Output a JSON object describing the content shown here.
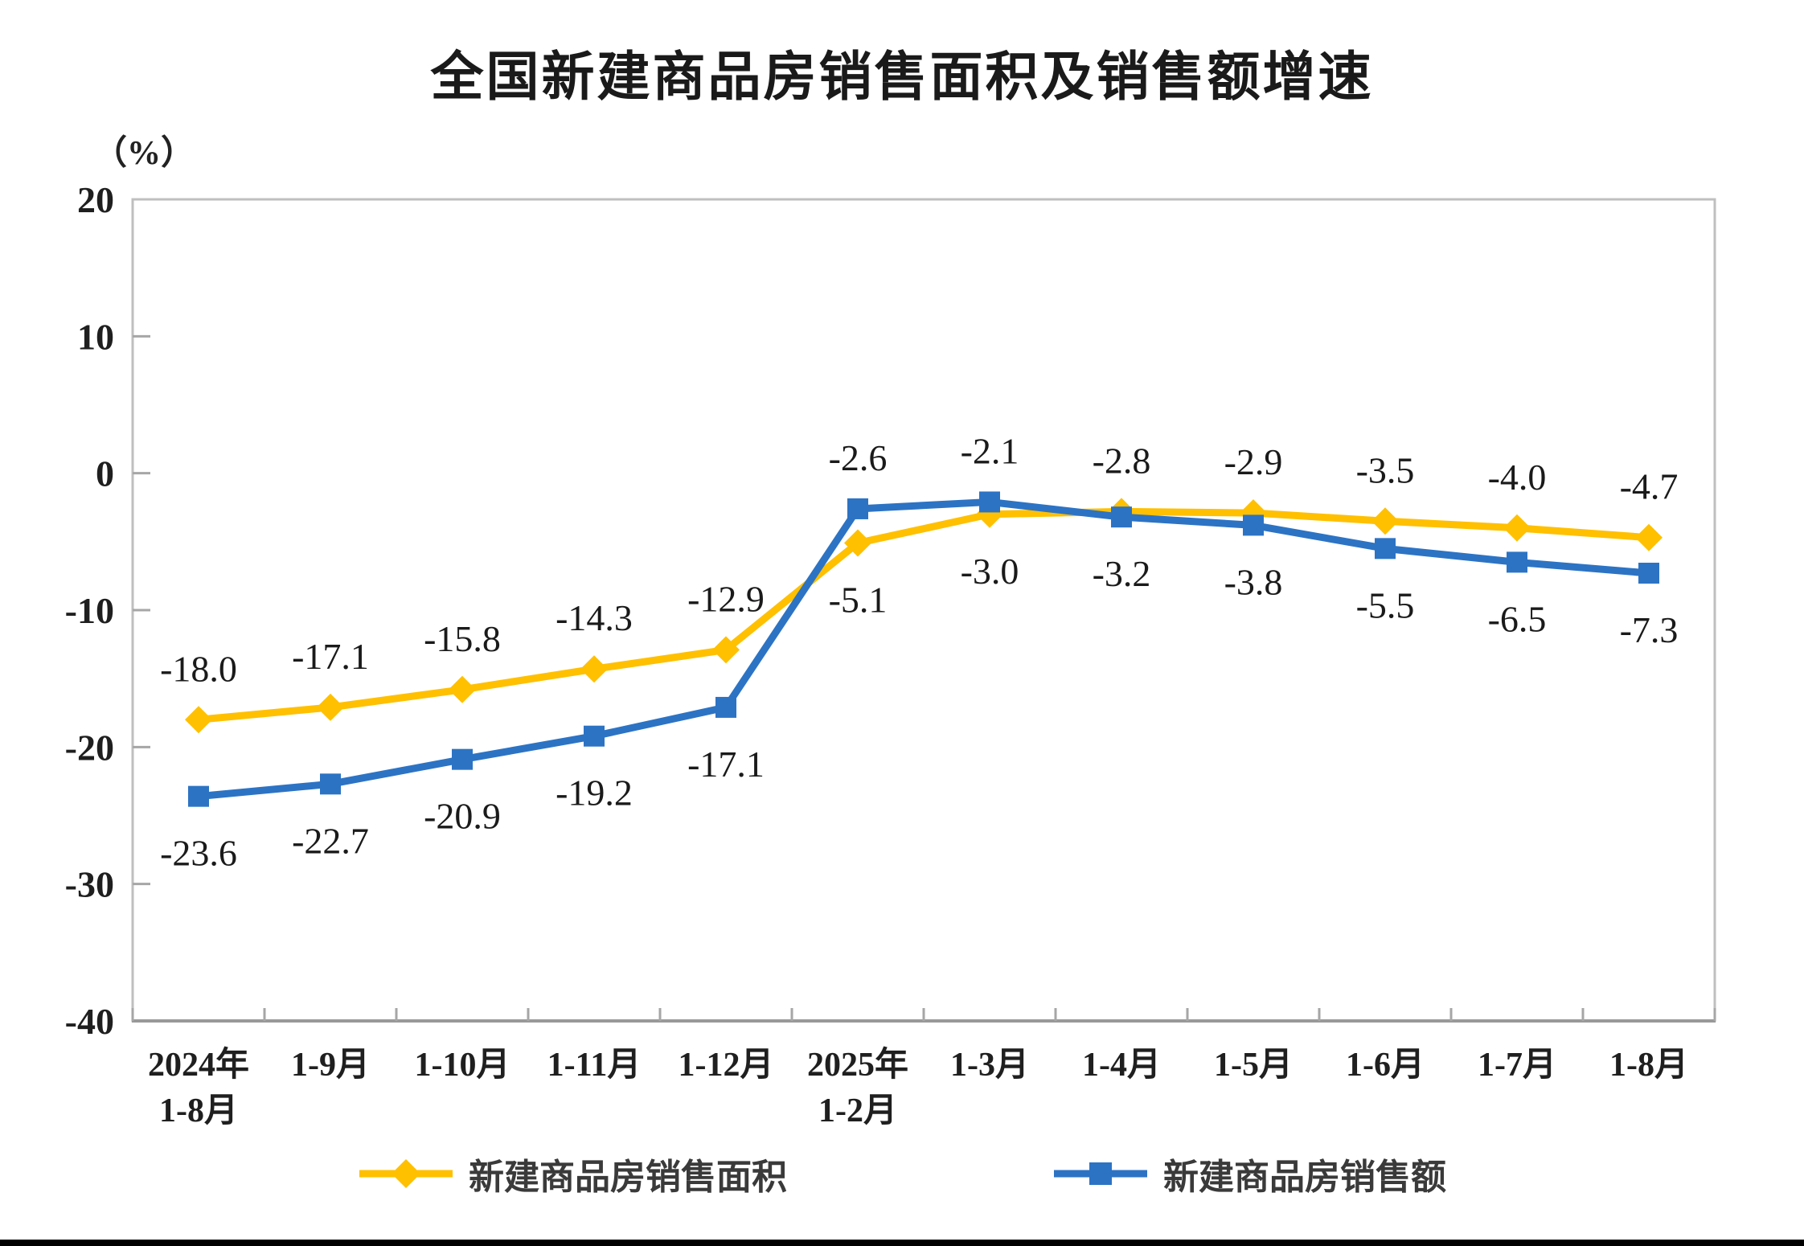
{
  "page": {
    "background": "#ffffff",
    "bottom_bar_color": "#000000"
  },
  "chart_data": {
    "type": "line",
    "title": "全国新建商品房销售面积及销售额增速",
    "unit_label": "（%）",
    "ylim": [
      -40,
      20
    ],
    "y_ticks": [
      20,
      10,
      0,
      -10,
      -20,
      -30,
      -40
    ],
    "grid": false,
    "legend_position": "bottom",
    "axis_color": "#a6a6a6",
    "border_color": "#bfbfbf",
    "label_color": "#1a1a1a",
    "categories": [
      [
        "2024年",
        "1-8月"
      ],
      [
        "1-9月"
      ],
      [
        "1-10月"
      ],
      [
        "1-11月"
      ],
      [
        "1-12月"
      ],
      [
        "2025年",
        "1-2月"
      ],
      [
        "1-3月"
      ],
      [
        "1-4月"
      ],
      [
        "1-5月"
      ],
      [
        "1-6月"
      ],
      [
        "1-7月"
      ],
      [
        "1-8月"
      ]
    ],
    "series": [
      {
        "name": "新建商品房销售面积",
        "color": "#FFC000",
        "marker": "diamond",
        "values": [
          -18.0,
          -17.1,
          -15.8,
          -14.3,
          -12.9,
          -5.1,
          -3.0,
          -2.8,
          -2.9,
          -3.5,
          -4.0,
          -4.7
        ],
        "label_sides": [
          "above",
          "above",
          "above",
          "above",
          "above",
          "below",
          "below",
          "above",
          "above",
          "above",
          "above",
          "above"
        ]
      },
      {
        "name": "新建商品房销售额",
        "color": "#2C73C4",
        "marker": "square",
        "values": [
          -23.6,
          -22.7,
          -20.9,
          -19.2,
          -17.1,
          -2.6,
          -2.1,
          -3.2,
          -3.8,
          -5.5,
          -6.5,
          -7.3
        ],
        "label_sides": [
          "below",
          "below",
          "below",
          "below",
          "below",
          "above",
          "above",
          "below",
          "below",
          "below",
          "below",
          "below"
        ]
      }
    ]
  }
}
